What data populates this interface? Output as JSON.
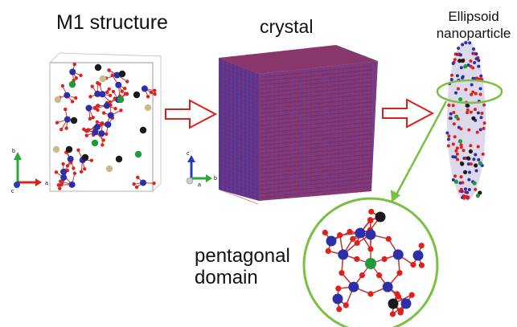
{
  "labels": {
    "m1_structure": "M1 structure",
    "crystal": "crystal",
    "ellipsoid_line1": "Ellipsoid",
    "ellipsoid_line2": "nanoparticle",
    "pentagonal_line1": "pentagonal",
    "pentagonal_line2": "domain"
  },
  "axes_m1": {
    "b": "b",
    "c": "c",
    "a": "a"
  },
  "axes_crystal": {
    "c": "c",
    "a": "a",
    "b": "b"
  },
  "colors": {
    "oxygen": "#e0201c",
    "metal": "#2b2fa8",
    "bond": "#c23a3a",
    "green_atom": "#1f9a3a",
    "black_atom": "#1a1a1a",
    "tan_atom": "#c8bd8a",
    "arrow_outline": "#d8231d",
    "highlight": "#79c043",
    "axis_green": "#2aa63a",
    "axis_red": "#d8231d",
    "axis_blue": "#2b3cb8"
  }
}
